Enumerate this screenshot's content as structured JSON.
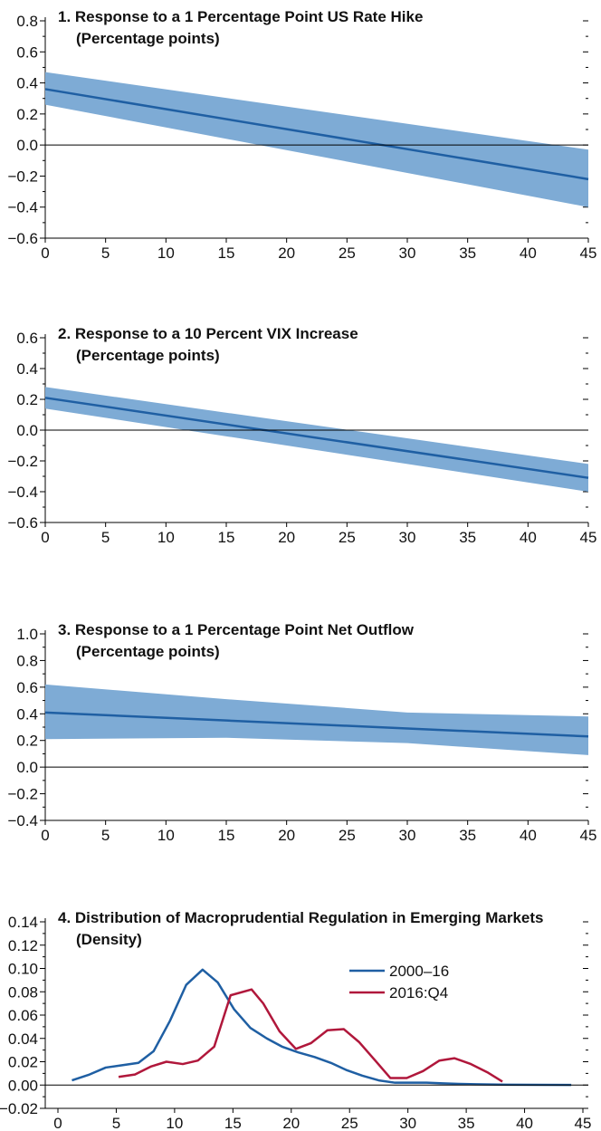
{
  "chart_data": [
    {
      "type": "line",
      "title": "1. Response to a 1 Percentage Point US Rate Hike",
      "subtitle": "(Percentage points)",
      "x": [
        0,
        45
      ],
      "series": [
        {
          "values": [
            0.36,
            -0.22
          ],
          "band_lower": [
            0.26,
            -0.4
          ],
          "band_upper": [
            0.47,
            -0.03
          ]
        }
      ],
      "xlim": [
        0,
        45
      ],
      "xticks": [
        0,
        5,
        10,
        15,
        20,
        25,
        30,
        35,
        40,
        45
      ],
      "ylim": [
        -0.6,
        0.8
      ],
      "yticks": [
        -0.6,
        -0.4,
        -0.2,
        0.0,
        0.2,
        0.4,
        0.6,
        0.8
      ],
      "ytick_labels": [
        "−0.6",
        "−0.4",
        "−0.2",
        "0.0",
        "0.2",
        "0.4",
        "0.6",
        "0.8"
      ]
    },
    {
      "type": "line",
      "title": "2. Response to a 10 Percent VIX Increase",
      "subtitle": "(Percentage points)",
      "x": [
        0,
        45
      ],
      "series": [
        {
          "values": [
            0.21,
            -0.31
          ],
          "band_lower": [
            0.14,
            -0.4
          ],
          "band_upper": [
            0.28,
            -0.22
          ]
        }
      ],
      "xlim": [
        0,
        45
      ],
      "xticks": [
        0,
        5,
        10,
        15,
        20,
        25,
        30,
        35,
        40,
        45
      ],
      "ylim": [
        -0.6,
        0.6
      ],
      "yticks": [
        -0.6,
        -0.4,
        -0.2,
        0.0,
        0.2,
        0.4,
        0.6
      ],
      "ytick_labels": [
        "−0.6",
        "−0.4",
        "−0.2",
        "0.0",
        "0.2",
        "0.4",
        "0.6"
      ]
    },
    {
      "type": "line",
      "title": "3. Response to a 1 Percentage Point Net Outflow",
      "subtitle": "(Percentage points)",
      "x": [
        0,
        15,
        30,
        45
      ],
      "series": [
        {
          "values": [
            0.41,
            0.35,
            0.29,
            0.23
          ],
          "band_lower": [
            0.21,
            0.22,
            0.18,
            0.09
          ],
          "band_upper": [
            0.62,
            0.51,
            0.41,
            0.38
          ]
        }
      ],
      "xlim": [
        0,
        45
      ],
      "xticks": [
        0,
        5,
        10,
        15,
        20,
        25,
        30,
        35,
        40,
        45
      ],
      "ylim": [
        -0.4,
        1.0
      ],
      "yticks": [
        -0.4,
        -0.2,
        0.0,
        0.2,
        0.4,
        0.6,
        0.8,
        1.0
      ],
      "ytick_labels": [
        "−0.4",
        "−0.2",
        "0.0",
        "0.2",
        "0.4",
        "0.6",
        "0.8",
        "1.0"
      ]
    },
    {
      "type": "line",
      "title": "4. Distribution of Macroprudential Regulation in Emerging Markets",
      "subtitle": "(Density)",
      "series": [
        {
          "name": "2000–16",
          "color": "#1f5fa3",
          "x": [
            1.2,
            2.7,
            4.1,
            5.5,
            6.9,
            8.2,
            9.6,
            11.0,
            12.4,
            13.7,
            15.1,
            16.5,
            17.9,
            19.2,
            20.6,
            22.0,
            23.4,
            24.7,
            26.1,
            27.5,
            28.9,
            30.2,
            31.6,
            33.0,
            34.4,
            35.8,
            37.1,
            38.5,
            41.0,
            44.0
          ],
          "values": [
            0.004,
            0.009,
            0.015,
            0.017,
            0.019,
            0.029,
            0.055,
            0.086,
            0.099,
            0.088,
            0.065,
            0.049,
            0.04,
            0.033,
            0.028,
            0.024,
            0.019,
            0.013,
            0.008,
            0.004,
            0.002,
            0.002,
            0.002,
            0.0015,
            0.001,
            0.0007,
            0.0005,
            0.0003,
            0.0002,
            0.0001
          ]
        },
        {
          "name": "2016:Q4",
          "color": "#b0173b",
          "x": [
            5.2,
            6.6,
            8.0,
            9.3,
            10.7,
            12.0,
            13.4,
            14.8,
            16.6,
            17.6,
            19.0,
            20.4,
            21.7,
            23.1,
            24.5,
            25.8,
            27.2,
            28.5,
            29.9,
            31.3,
            32.7,
            34.0,
            35.4,
            36.8,
            38.1
          ],
          "values": [
            0.007,
            0.009,
            0.016,
            0.02,
            0.018,
            0.021,
            0.033,
            0.077,
            0.082,
            0.07,
            0.046,
            0.031,
            0.036,
            0.047,
            0.048,
            0.037,
            0.021,
            0.006,
            0.006,
            0.012,
            0.021,
            0.023,
            0.018,
            0.011,
            0.003
          ]
        }
      ],
      "xlim": [
        -2,
        46
      ],
      "xticks": [
        0,
        5,
        10,
        15,
        20,
        25,
        30,
        35,
        40,
        45
      ],
      "ylim": [
        -0.02,
        0.14
      ],
      "yticks": [
        -0.02,
        0.0,
        0.02,
        0.04,
        0.06,
        0.08,
        0.1,
        0.12,
        0.14
      ],
      "ytick_labels": [
        "−0.02",
        "0.00",
        "0.02",
        "0.04",
        "0.06",
        "0.08",
        "0.10",
        "0.12",
        "0.14"
      ],
      "legend": "top-center"
    }
  ],
  "colors": {
    "line": "#1f5fa3",
    "band": "#7eabd5",
    "zero": "#000000"
  }
}
